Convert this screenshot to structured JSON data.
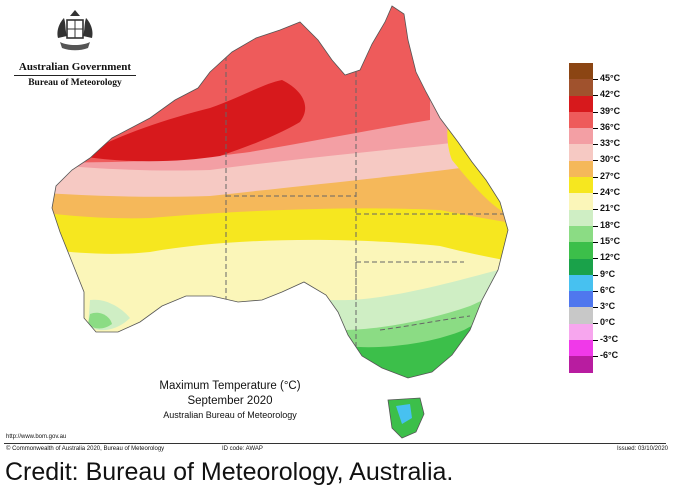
{
  "header": {
    "government": "Australian Government",
    "bureau": "Bureau of Meteorology",
    "crest_icon": "coat-of-arms-icon"
  },
  "map": {
    "title_line1": "Maximum Temperature (°C)",
    "period": "September 2020",
    "publisher": "Australian Bureau of Meteorology"
  },
  "legend": [
    {
      "label": "45°C",
      "color": "#8b4513"
    },
    {
      "label": "42°C",
      "color": "#a0522d"
    },
    {
      "label": "39°C",
      "color": "#d7191c"
    },
    {
      "label": "36°C",
      "color": "#ee5b5b"
    },
    {
      "label": "33°C",
      "color": "#f39fa4"
    },
    {
      "label": "30°C",
      "color": "#f6c9c3"
    },
    {
      "label": "27°C",
      "color": "#f5b85a"
    },
    {
      "label": "24°C",
      "color": "#f6e71f"
    },
    {
      "label": "21°C",
      "color": "#fbf6b9"
    },
    {
      "label": "18°C",
      "color": "#cfeec4"
    },
    {
      "label": "15°C",
      "color": "#8bdc84"
    },
    {
      "label": "12°C",
      "color": "#3cbf4a"
    },
    {
      "label": "9°C",
      "color": "#1aa24a"
    },
    {
      "label": "6°C",
      "color": "#47c1f0"
    },
    {
      "label": "3°C",
      "color": "#4f77ee"
    },
    {
      "label": "0°C",
      "color": "#c8c8c8"
    },
    {
      "label": "-3°C",
      "color": "#f7a6ee"
    },
    {
      "label": "-6°C",
      "color": "#f039e9"
    },
    {
      "label": "",
      "color": "#b81ca0"
    }
  ],
  "footer": {
    "url": "http://www.bom.gov.au",
    "copyright": "© Commonwealth of Australia 2020, Bureau of Meteorology",
    "id_code": "ID code: AWAP",
    "issued": "Issued: 03/10/2020"
  },
  "credit": "Credit: Bureau of Meteorology, Australia."
}
